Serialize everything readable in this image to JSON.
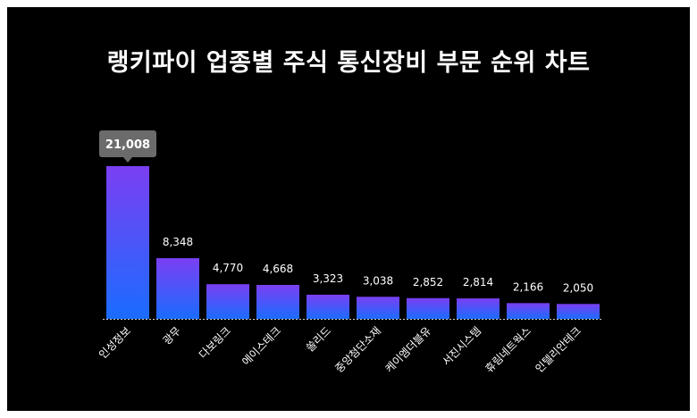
{
  "title": "랭키파이 업종별 주식 통신장비 부문 순위 차트",
  "colors": {
    "background": "#000000",
    "bar_top": "#7b3ff2",
    "bar_bottom": "#1a6cff",
    "tooltip": "#6b6b6b",
    "text": "#ffffff"
  },
  "chart_data": {
    "type": "bar",
    "categories": [
      "인성정보",
      "광무",
      "다보링크",
      "에이스테크",
      "쏠리드",
      "중앙첨단소재",
      "케이엠더블유",
      "서진시스템",
      "휴림네트웍스",
      "인텔리안테크"
    ],
    "values": [
      21008,
      8348,
      4770,
      4668,
      3323,
      3038,
      2852,
      2814,
      2166,
      2050
    ],
    "value_labels": [
      "21,008",
      "8,348",
      "4,770",
      "4,668",
      "3,323",
      "3,038",
      "2,852",
      "2,814",
      "2,166",
      "2,050"
    ],
    "highlight_index": 0,
    "ylim": [
      0,
      21008
    ],
    "grid": false,
    "legend": "none"
  }
}
